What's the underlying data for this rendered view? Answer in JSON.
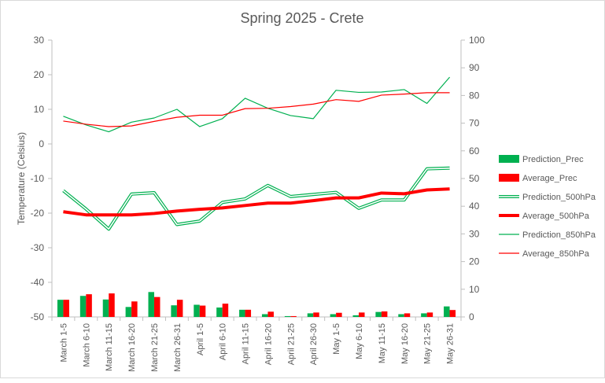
{
  "chart_data": {
    "type": "bar+line",
    "title": "Spring 2025 - Crete",
    "ylabel_left": "Temperature (Celsius)",
    "ylabel_right": "",
    "xlabel": "",
    "ylim_left": [
      -50,
      30
    ],
    "yticks_left": [
      -50,
      -40,
      -30,
      -20,
      -10,
      0,
      10,
      20,
      30
    ],
    "ylim_right": [
      0,
      100
    ],
    "yticks_right": [
      0,
      10,
      20,
      30,
      40,
      50,
      60,
      70,
      80,
      90,
      100
    ],
    "grid": "none",
    "legend_position": "right",
    "categories": [
      "March 1-5",
      "March 6-10",
      "March 11-15",
      "March 16-20",
      "March 21-25",
      "March 26-31",
      "April 1-5",
      "April 6-10",
      "April 11-15",
      "April 16-20",
      "April 21-25",
      "April 26-30",
      "May 1-5",
      "May 6-10",
      "May 11-15",
      "May 16-20",
      "May 21-25",
      "May 26-31"
    ],
    "series": [
      {
        "name": "Prediction_Prec",
        "kind": "bar",
        "axis": "right",
        "color": "#00b050",
        "values": [
          6.2,
          7.6,
          6.3,
          3.6,
          9.0,
          4.2,
          4.4,
          3.4,
          2.6,
          1.0,
          0.3,
          1.3,
          1.0,
          0.6,
          1.8,
          1.0,
          1.3,
          3.8
        ]
      },
      {
        "name": "Average_Prec",
        "kind": "bar",
        "axis": "right",
        "color": "#ff0000",
        "values": [
          6.2,
          8.2,
          8.5,
          5.6,
          7.2,
          6.2,
          4.1,
          4.8,
          2.6,
          1.9,
          0.3,
          1.6,
          1.5,
          1.6,
          2.0,
          1.3,
          1.6,
          2.5
        ]
      },
      {
        "name": "Prediction_500hPa",
        "kind": "line-double",
        "axis": "left",
        "color": "#00b050",
        "values": [
          -13.5,
          -18.8,
          -24.6,
          -14.5,
          -14.1,
          -23.3,
          -22.3,
          -16.9,
          -15.9,
          -12.0,
          -15.2,
          -14.6,
          -14.0,
          -18.6,
          -16.2,
          -16.2,
          -7.2,
          -7.0
        ]
      },
      {
        "name": "Average_500hPa",
        "kind": "line-thick",
        "axis": "left",
        "color": "#ff0000",
        "values": [
          -19.6,
          -20.5,
          -20.5,
          -20.5,
          -20.1,
          -19.4,
          -18.9,
          -18.5,
          -17.8,
          -17.1,
          -17.1,
          -16.4,
          -15.6,
          -15.6,
          -14.2,
          -14.4,
          -13.3,
          -13.0
        ]
      },
      {
        "name": "Prediction_850hPa",
        "kind": "line",
        "axis": "left",
        "color": "#00b050",
        "values": [
          8.0,
          5.5,
          3.5,
          6.3,
          7.5,
          10.0,
          5.0,
          7.3,
          13.2,
          10.3,
          8.2,
          7.3,
          15.5,
          14.9,
          15.0,
          15.7,
          11.7,
          19.3
        ]
      },
      {
        "name": "Average_850hPa",
        "kind": "line",
        "axis": "left",
        "color": "#ff0000",
        "values": [
          6.6,
          5.7,
          5.0,
          5.2,
          6.5,
          7.7,
          8.3,
          8.3,
          10.2,
          10.3,
          10.8,
          11.5,
          12.8,
          12.3,
          14.1,
          14.4,
          14.8,
          14.8
        ]
      }
    ]
  }
}
